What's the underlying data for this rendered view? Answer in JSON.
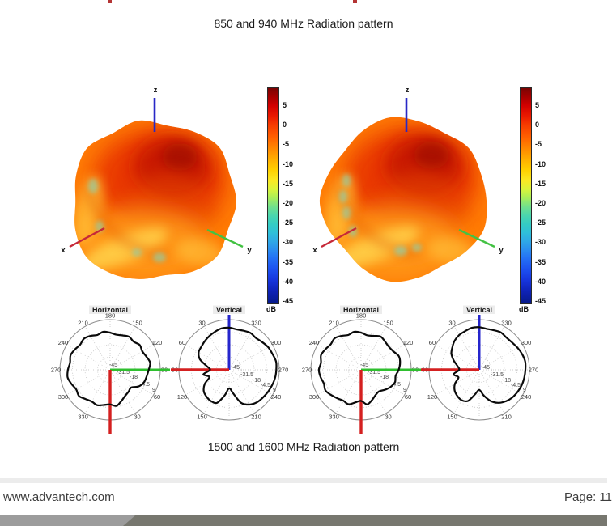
{
  "titles": {
    "top": "850 and 940 MHz Radiation pattern",
    "bottom": "1500 and 1600 MHz Radiation pattern"
  },
  "footer": {
    "website": "www.advantech.com",
    "page": "Page: 11"
  },
  "figure3d": {
    "axis_labels": {
      "x": "x",
      "y": "y",
      "z": "z"
    },
    "colorbar": {
      "unit": "dB",
      "ticks": [
        "5",
        "0",
        "-5",
        "-10",
        "-15",
        "-20",
        "-25",
        "-30",
        "-35",
        "-40",
        "-45"
      ],
      "max_db": 8,
      "min_db": -45
    }
  },
  "chart_data": [
    {
      "type": "3d-surface",
      "subtype": "radiation-pattern",
      "position": "left",
      "axis_labels": [
        "x",
        "y",
        "z"
      ],
      "colorbar_range_db": [
        -45,
        8
      ],
      "colormap": "jet"
    },
    {
      "type": "3d-surface",
      "subtype": "radiation-pattern",
      "position": "right",
      "axis_labels": [
        "x",
        "y",
        "z"
      ],
      "colorbar_range_db": [
        -45,
        8
      ],
      "colormap": "jet"
    },
    {
      "type": "polar",
      "title": "Horizontal",
      "orientation": "horizontal",
      "radial_ticks": [
        "-45",
        "-31.5",
        "-18",
        "-4.5",
        "9"
      ],
      "radial_unit": "dB",
      "angle_labels": [
        {
          "label": "90",
          "screen_deg": 0
        },
        {
          "label": "120",
          "screen_deg": 30
        },
        {
          "label": "150",
          "screen_deg": 60
        },
        {
          "label": "180",
          "screen_deg": 90
        },
        {
          "label": "210",
          "screen_deg": 120
        },
        {
          "label": "240",
          "screen_deg": 150
        },
        {
          "label": "270",
          "screen_deg": 180
        },
        {
          "label": "300",
          "screen_deg": 210
        },
        {
          "label": "330",
          "screen_deg": 240
        },
        {
          "label": "30",
          "screen_deg": 300
        },
        {
          "label": "60",
          "screen_deg": 330
        }
      ],
      "pattern_r_frac": [
        0.77,
        0.81,
        0.77,
        0.74,
        0.77,
        0.73,
        0.76,
        0.73,
        0.71,
        0.74,
        0.77,
        0.74,
        0.78,
        0.81,
        0.78,
        0.81,
        0.84,
        0.81,
        0.84,
        0.86,
        0.82,
        0.78,
        0.81,
        0.76,
        0.73,
        0.75,
        0.71,
        0.69,
        0.73,
        0.66,
        0.6,
        0.57,
        0.55,
        0.66,
        0.72,
        0.74
      ]
    },
    {
      "type": "polar",
      "title": "Vertical",
      "orientation": "vertical",
      "radial_ticks": [
        "-45",
        "-31.5",
        "-18",
        "-4.5",
        "9"
      ],
      "radial_unit": "dB",
      "angle_labels": [
        {
          "label": "270",
          "screen_deg": 0
        },
        {
          "label": "300",
          "screen_deg": 30
        },
        {
          "label": "330",
          "screen_deg": 60
        },
        {
          "label": "30",
          "screen_deg": 120
        },
        {
          "label": "60",
          "screen_deg": 150
        },
        {
          "label": "90",
          "screen_deg": 180
        },
        {
          "label": "120",
          "screen_deg": 210
        },
        {
          "label": "150",
          "screen_deg": 240
        },
        {
          "label": "210",
          "screen_deg": 300
        },
        {
          "label": "240",
          "screen_deg": 330
        }
      ],
      "pattern_r_frac": [
        0.94,
        0.95,
        0.92,
        0.9,
        0.86,
        0.83,
        0.85,
        0.83,
        0.82,
        0.84,
        0.84,
        0.81,
        0.78,
        0.75,
        0.72,
        0.7,
        0.62,
        0.46,
        0.38,
        0.52,
        0.42,
        0.56,
        0.66,
        0.7,
        0.72,
        0.7,
        0.52,
        0.37,
        0.48,
        0.7,
        0.8,
        0.85,
        0.87,
        0.89,
        0.91,
        0.93
      ]
    },
    {
      "type": "polar",
      "title": "Horizontal",
      "orientation": "horizontal",
      "radial_ticks": [
        "-45",
        "-31.5",
        "-18",
        "-4.5",
        "9"
      ],
      "radial_unit": "dB",
      "angle_labels": [
        {
          "label": "90",
          "screen_deg": 0
        },
        {
          "label": "120",
          "screen_deg": 30
        },
        {
          "label": "150",
          "screen_deg": 60
        },
        {
          "label": "180",
          "screen_deg": 90
        },
        {
          "label": "210",
          "screen_deg": 120
        },
        {
          "label": "240",
          "screen_deg": 150
        },
        {
          "label": "270",
          "screen_deg": 180
        },
        {
          "label": "300",
          "screen_deg": 210
        },
        {
          "label": "330",
          "screen_deg": 240
        },
        {
          "label": "30",
          "screen_deg": 300
        },
        {
          "label": "60",
          "screen_deg": 330
        }
      ],
      "pattern_r_frac": [
        0.75,
        0.79,
        0.8,
        0.74,
        0.72,
        0.74,
        0.77,
        0.72,
        0.7,
        0.74,
        0.77,
        0.74,
        0.78,
        0.82,
        0.79,
        0.82,
        0.85,
        0.81,
        0.84,
        0.82,
        0.79,
        0.82,
        0.78,
        0.74,
        0.71,
        0.73,
        0.66,
        0.62,
        0.7,
        0.64,
        0.58,
        0.56,
        0.62,
        0.68,
        0.72,
        0.7
      ]
    },
    {
      "type": "polar",
      "title": "Vertical",
      "orientation": "vertical",
      "radial_ticks": [
        "-45",
        "-31.5",
        "-18",
        "-4.5",
        "9"
      ],
      "radial_unit": "dB",
      "angle_labels": [
        {
          "label": "270",
          "screen_deg": 0
        },
        {
          "label": "300",
          "screen_deg": 30
        },
        {
          "label": "330",
          "screen_deg": 60
        },
        {
          "label": "30",
          "screen_deg": 120
        },
        {
          "label": "60",
          "screen_deg": 150
        },
        {
          "label": "90",
          "screen_deg": 180
        },
        {
          "label": "120",
          "screen_deg": 210
        },
        {
          "label": "150",
          "screen_deg": 240
        },
        {
          "label": "210",
          "screen_deg": 300
        },
        {
          "label": "240",
          "screen_deg": 330
        }
      ],
      "pattern_r_frac": [
        0.92,
        0.93,
        0.91,
        0.88,
        0.85,
        0.84,
        0.86,
        0.84,
        0.83,
        0.85,
        0.85,
        0.82,
        0.8,
        0.76,
        0.7,
        0.64,
        0.54,
        0.44,
        0.4,
        0.52,
        0.44,
        0.56,
        0.64,
        0.68,
        0.7,
        0.66,
        0.5,
        0.4,
        0.52,
        0.66,
        0.76,
        0.82,
        0.86,
        0.88,
        0.9,
        0.91
      ]
    }
  ]
}
